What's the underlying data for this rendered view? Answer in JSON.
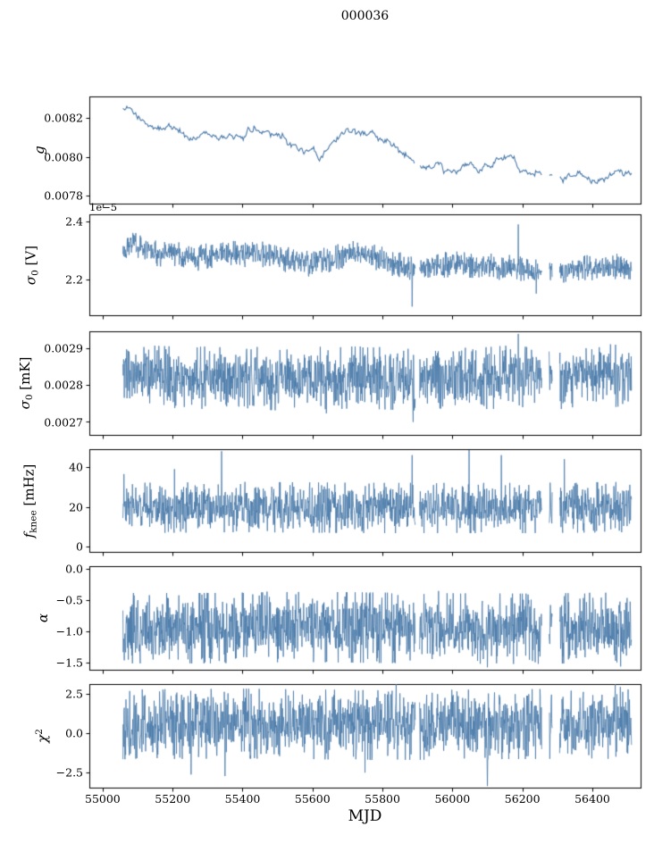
{
  "figure": {
    "title": "000036",
    "xlabel": "MJD",
    "line_color": "#4878a8",
    "axis_color": "#000000",
    "background": "#ffffff",
    "x_start": 55058,
    "x_end": 56512,
    "xlim": [
      54962,
      56538
    ],
    "xticks": [
      55000,
      55200,
      55400,
      55600,
      55800,
      56000,
      56200,
      56400
    ],
    "xtick_labels": [
      "55000",
      "55200",
      "55400",
      "55600",
      "55800",
      "56000",
      "56200",
      "56400"
    ],
    "gaps": [
      [
        55894,
        55906
      ],
      [
        56256,
        56276
      ],
      [
        56286,
        56306
      ]
    ]
  },
  "chart_data": [
    {
      "name": "gain",
      "type": "line",
      "smooth": true,
      "seed": 11,
      "ylabel": [
        {
          "t": "g",
          "i": 1
        }
      ],
      "ylim": [
        0.00776,
        0.00831
      ],
      "yticks": [
        0.0078,
        0.008,
        0.0082
      ],
      "ytick_labels": [
        "0.0078",
        "0.0080",
        "0.0082"
      ],
      "noise": 7.5e-06,
      "jitter": 4e-06,
      "mean": [
        [
          55058,
          0.008243
        ],
        [
          55072,
          0.008251
        ],
        [
          55090,
          0.008235
        ],
        [
          55110,
          0.0082
        ],
        [
          55135,
          0.008172
        ],
        [
          55160,
          0.008158
        ],
        [
          55185,
          0.008162
        ],
        [
          55210,
          0.008156
        ],
        [
          55230,
          0.008148
        ],
        [
          55248,
          0.008098
        ],
        [
          55262,
          0.008118
        ],
        [
          55280,
          0.008128
        ],
        [
          55300,
          0.008113
        ],
        [
          55325,
          0.008118
        ],
        [
          55350,
          0.008112
        ],
        [
          55375,
          0.00811
        ],
        [
          55400,
          0.008112
        ],
        [
          55420,
          0.008145
        ],
        [
          55435,
          0.008163
        ],
        [
          55452,
          0.008128
        ],
        [
          55468,
          0.008106
        ],
        [
          55482,
          0.008096
        ],
        [
          55500,
          0.008108
        ],
        [
          55520,
          0.008106
        ],
        [
          55540,
          0.008065
        ],
        [
          55562,
          0.00805
        ],
        [
          55582,
          0.008042
        ],
        [
          55602,
          0.008028
        ],
        [
          55618,
          0.00799
        ],
        [
          55632,
          0.008006
        ],
        [
          55648,
          0.00804
        ],
        [
          55665,
          0.00806
        ],
        [
          55685,
          0.008096
        ],
        [
          55705,
          0.008108
        ],
        [
          55725,
          0.00811
        ],
        [
          55745,
          0.008104
        ],
        [
          55765,
          0.008108
        ],
        [
          55785,
          0.008094
        ],
        [
          55805,
          0.00808
        ],
        [
          55825,
          0.008054
        ],
        [
          55845,
          0.008038
        ],
        [
          55865,
          0.008
        ],
        [
          55885,
          0.007992
        ],
        [
          55905,
          0.007964
        ],
        [
          55925,
          0.00795
        ],
        [
          55945,
          0.00794
        ],
        [
          55965,
          0.007943
        ],
        [
          55985,
          0.007948
        ],
        [
          56005,
          0.007938
        ],
        [
          56025,
          0.007955
        ],
        [
          56045,
          0.007957
        ],
        [
          56065,
          0.007944
        ],
        [
          56085,
          0.007942
        ],
        [
          56105,
          0.007962
        ],
        [
          56125,
          0.007998
        ],
        [
          56145,
          0.008001
        ],
        [
          56165,
          0.007988
        ],
        [
          56185,
          0.007942
        ],
        [
          56205,
          0.007912
        ],
        [
          56225,
          0.007896
        ],
        [
          56245,
          0.007906
        ],
        [
          56265,
          0.007918
        ],
        [
          56285,
          0.00789
        ],
        [
          56305,
          0.007876
        ],
        [
          56325,
          0.007884
        ],
        [
          56345,
          0.007896
        ],
        [
          56365,
          0.0079
        ],
        [
          56385,
          0.007888
        ],
        [
          56405,
          0.00788
        ],
        [
          56425,
          0.007896
        ],
        [
          56445,
          0.007912
        ],
        [
          56465,
          0.00793
        ],
        [
          56485,
          0.007936
        ],
        [
          56500,
          0.00792
        ],
        [
          56512,
          0.007906
        ]
      ],
      "spikes": []
    },
    {
      "name": "sigma0_V",
      "type": "line",
      "smooth": false,
      "seed": 22,
      "offset_label": "1e−5",
      "ylabel": [
        {
          "t": "σ",
          "i": 1
        },
        {
          "t": "0",
          "sub": 1
        },
        {
          "t": " [V]"
        }
      ],
      "ylim": [
        2.075,
        2.425
      ],
      "yticks": [
        2.2,
        2.4
      ],
      "ytick_labels": [
        "2.2",
        "2.4"
      ],
      "noise": 0.021,
      "mean": [
        [
          55058,
          2.305
        ],
        [
          55075,
          2.325
        ],
        [
          55090,
          2.33
        ],
        [
          55110,
          2.31
        ],
        [
          55130,
          2.3
        ],
        [
          55150,
          2.29
        ],
        [
          55170,
          2.288
        ],
        [
          55200,
          2.292
        ],
        [
          55230,
          2.278
        ],
        [
          55260,
          2.27
        ],
        [
          55290,
          2.278
        ],
        [
          55320,
          2.285
        ],
        [
          55350,
          2.29
        ],
        [
          55380,
          2.288
        ],
        [
          55410,
          2.286
        ],
        [
          55440,
          2.292
        ],
        [
          55470,
          2.282
        ],
        [
          55500,
          2.272
        ],
        [
          55530,
          2.268
        ],
        [
          55560,
          2.262
        ],
        [
          55590,
          2.258
        ],
        [
          55620,
          2.262
        ],
        [
          55650,
          2.268
        ],
        [
          55680,
          2.28
        ],
        [
          55710,
          2.288
        ],
        [
          55740,
          2.288
        ],
        [
          55770,
          2.278
        ],
        [
          55800,
          2.268
        ],
        [
          55830,
          2.255
        ],
        [
          55860,
          2.246
        ],
        [
          55890,
          2.24
        ],
        [
          55920,
          2.238
        ],
        [
          55950,
          2.246
        ],
        [
          55980,
          2.25
        ],
        [
          56010,
          2.252
        ],
        [
          56040,
          2.25
        ],
        [
          56070,
          2.248
        ],
        [
          56100,
          2.246
        ],
        [
          56130,
          2.242
        ],
        [
          56160,
          2.24
        ],
        [
          56190,
          2.238
        ],
        [
          56220,
          2.23
        ],
        [
          56250,
          2.222
        ],
        [
          56280,
          2.218
        ],
        [
          56310,
          2.225
        ],
        [
          56340,
          2.232
        ],
        [
          56370,
          2.238
        ],
        [
          56400,
          2.24
        ],
        [
          56430,
          2.242
        ],
        [
          56460,
          2.245
        ],
        [
          56490,
          2.242
        ],
        [
          56512,
          2.238
        ]
      ],
      "spikes": [
        [
          55095,
          2.36
        ],
        [
          55885,
          2.105
        ],
        [
          56188,
          2.39
        ],
        [
          56240,
          2.15
        ]
      ]
    },
    {
      "name": "sigma0_mK",
      "type": "line",
      "smooth": false,
      "seed": 33,
      "ylabel": [
        {
          "t": "σ",
          "i": 1
        },
        {
          "t": "0",
          "sub": 1
        },
        {
          "t": " [mK]"
        }
      ],
      "ylim": [
        0.002665,
        0.002945
      ],
      "yticks": [
        0.0027,
        0.0028,
        0.0029
      ],
      "ytick_labels": [
        "0.0027",
        "0.0028",
        "0.0029"
      ],
      "noise": 4e-05,
      "mean": [
        [
          55058,
          0.002823
        ],
        [
          55100,
          0.002825
        ],
        [
          55150,
          0.002822
        ],
        [
          55200,
          0.00282
        ],
        [
          55250,
          0.002818
        ],
        [
          55300,
          0.00282
        ],
        [
          55350,
          0.002818
        ],
        [
          55400,
          0.002822
        ],
        [
          55450,
          0.002818
        ],
        [
          55500,
          0.002815
        ],
        [
          55550,
          0.002818
        ],
        [
          55600,
          0.00282
        ],
        [
          55650,
          0.002818
        ],
        [
          55700,
          0.00282
        ],
        [
          55750,
          0.00282
        ],
        [
          55800,
          0.002818
        ],
        [
          55850,
          0.002816
        ],
        [
          55900,
          0.002815
        ],
        [
          55950,
          0.00282
        ],
        [
          56000,
          0.00282
        ],
        [
          56050,
          0.002818
        ],
        [
          56100,
          0.002818
        ],
        [
          56150,
          0.002822
        ],
        [
          56200,
          0.002824
        ],
        [
          56250,
          0.00282
        ],
        [
          56300,
          0.002818
        ],
        [
          56350,
          0.002822
        ],
        [
          56400,
          0.002822
        ],
        [
          56450,
          0.002826
        ],
        [
          56500,
          0.002822
        ],
        [
          56512,
          0.00282
        ]
      ],
      "spikes": [
        [
          55335,
          0.002902
        ],
        [
          55470,
          0.002748
        ],
        [
          55888,
          0.0027
        ],
        [
          56188,
          0.002938
        ],
        [
          56420,
          0.002902
        ]
      ]
    },
    {
      "name": "f_knee",
      "type": "line",
      "smooth": false,
      "seed": 44,
      "ylabel": [
        {
          "t": "f",
          "i": 1
        },
        {
          "t": "knee",
          "sub": 1
        },
        {
          "t": " [mHz]"
        }
      ],
      "ylim": [
        -2.5,
        49
      ],
      "yticks": [
        0,
        20,
        40
      ],
      "ytick_labels": [
        "0",
        "20",
        "40"
      ],
      "noise": 6,
      "mean": [
        [
          55058,
          19.5
        ],
        [
          55400,
          20
        ],
        [
          55800,
          19.5
        ],
        [
          56200,
          19.5
        ],
        [
          56512,
          20
        ]
      ],
      "spikes": [
        [
          55205,
          39
        ],
        [
          55340,
          48
        ],
        [
          55885,
          46
        ],
        [
          56048,
          48.5
        ],
        [
          56140,
          46
        ],
        [
          56320,
          44
        ]
      ]
    },
    {
      "name": "alpha",
      "type": "line",
      "smooth": false,
      "seed": 55,
      "ylabel": [
        {
          "t": "α",
          "i": 1
        }
      ],
      "ylim": [
        -1.62,
        0.05
      ],
      "yticks": [
        0,
        -0.5,
        -1,
        -1.5
      ],
      "ytick_labels": [
        "0.0",
        "−0.5",
        "−1.0",
        "−1.5"
      ],
      "noise": 0.27,
      "mean": [
        [
          55058,
          -0.95
        ],
        [
          55300,
          -0.95
        ],
        [
          55600,
          -0.93
        ],
        [
          55900,
          -0.95
        ],
        [
          56200,
          -0.96
        ],
        [
          56512,
          -0.94
        ]
      ],
      "spikes": [
        [
          55470,
          -0.36
        ],
        [
          55960,
          -0.35
        ],
        [
          56100,
          -1.58
        ]
      ]
    },
    {
      "name": "chi2",
      "type": "line",
      "smooth": false,
      "seed": 66,
      "ylabel": [
        {
          "t": "χ",
          "i": 1
        },
        {
          "t": "2",
          "sup": 1
        }
      ],
      "ylim": [
        -3.45,
        3.1
      ],
      "yticks": [
        2.5,
        0,
        -2.5
      ],
      "ytick_labels": [
        "2.5",
        "0.0",
        "−2.5"
      ],
      "noise": 1.05,
      "mean": [
        [
          55058,
          0.55
        ],
        [
          55400,
          0.6
        ],
        [
          55800,
          0.5
        ],
        [
          56100,
          0.55
        ],
        [
          56400,
          0.6
        ],
        [
          56512,
          0.55
        ]
      ],
      "spikes": [
        [
          55253,
          -2.62
        ],
        [
          55350,
          -2.72
        ],
        [
          55750,
          -2.5
        ],
        [
          56100,
          -3.35
        ],
        [
          56480,
          2.92
        ]
      ]
    }
  ]
}
